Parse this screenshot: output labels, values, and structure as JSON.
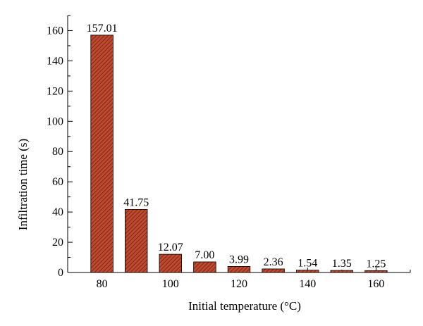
{
  "chart_data": {
    "type": "bar",
    "title": "",
    "xlabel": "Initial temperature (°C)",
    "ylabel": "Infiltration time (s)",
    "categories": [
      "80",
      "90",
      "100",
      "110",
      "120",
      "130",
      "140",
      "150",
      "160"
    ],
    "values": [
      157.01,
      41.75,
      12.07,
      7.0,
      3.99,
      2.36,
      1.54,
      1.35,
      1.25
    ],
    "data_labels": [
      "157.01",
      "41.75",
      "12.07",
      "7.00",
      "3.99",
      "2.36",
      "1.54",
      "1.35",
      "1.25"
    ],
    "xlim": [
      70,
      170
    ],
    "ylim": [
      0,
      170
    ],
    "x_ticks": [
      80,
      100,
      120,
      140,
      160
    ],
    "x_tick_labels": [
      "80",
      "100",
      "120",
      "140",
      "160"
    ],
    "y_ticks": [
      0,
      20,
      40,
      60,
      80,
      100,
      120,
      140,
      160
    ],
    "y_tick_labels": [
      "0",
      "20",
      "40",
      "60",
      "80",
      "100",
      "120",
      "140",
      "160"
    ],
    "bar_width": 6.5,
    "grid": false,
    "legend": "none",
    "bar_color": "#c0492f",
    "bar_hatch_color": "#5a1c10",
    "bar_edge_color": "#000000"
  }
}
